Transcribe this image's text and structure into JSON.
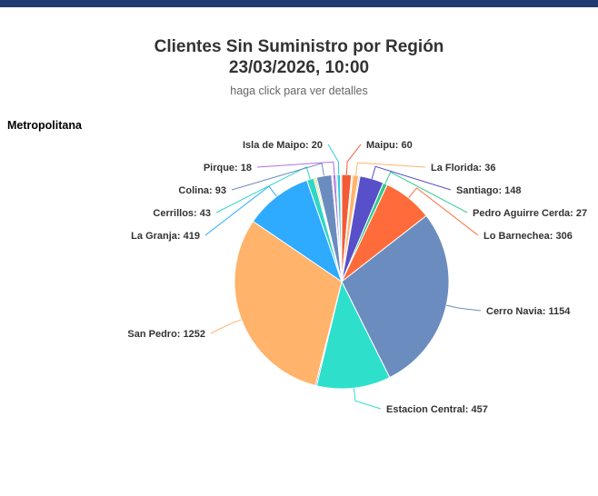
{
  "header": {
    "title_line1": "Clientes Sin Suministro por Región",
    "title_line2": "23/03/2026, 10:00",
    "subtitle": "haga click para ver detalles"
  },
  "region_label": "Metropolitana",
  "chart_data": {
    "type": "pie",
    "title": "Clientes Sin Suministro por Región 23/03/2026, 10:00",
    "subtitle": "haga click para ver detalles",
    "slices": [
      {
        "name": "Maipu",
        "value": 60,
        "color": "#f25b36"
      },
      {
        "name": "",
        "value": 8,
        "color": "#c9c9c9"
      },
      {
        "name": "La Florida",
        "value": 36,
        "color": "#ffb36b"
      },
      {
        "name": "",
        "value": 8,
        "color": "#9aa3d6"
      },
      {
        "name": "Santiago",
        "value": 148,
        "color": "#5750c8"
      },
      {
        "name": "Pedro Aguirre Cerda",
        "value": 27,
        "color": "#2ecc8a"
      },
      {
        "name": "Lo Barnechea",
        "value": 306,
        "color": "#ff6b3a"
      },
      {
        "name": "Cerro Navia",
        "value": 1154,
        "color": "#6b8cbf"
      },
      {
        "name": "Estacion Central",
        "value": 457,
        "color": "#2ee0cc"
      },
      {
        "name": "",
        "value": 8,
        "color": "#555555"
      },
      {
        "name": "San Pedro",
        "value": 1252,
        "color": "#ffb36b"
      },
      {
        "name": "La Granja",
        "value": 419,
        "color": "#2eaaff"
      },
      {
        "name": "Cerrillos",
        "value": 43,
        "color": "#2ed6c8"
      },
      {
        "name": "",
        "value": 10,
        "color": "#f2d21e"
      },
      {
        "name": "",
        "value": 8,
        "color": "#2ecc8a"
      },
      {
        "name": "Colina",
        "value": 93,
        "color": "#6b8cbf"
      },
      {
        "name": "",
        "value": 8,
        "color": "#c8b8e0"
      },
      {
        "name": "Pirque",
        "value": 18,
        "color": "#b070e0"
      },
      {
        "name": "",
        "value": 8,
        "color": "#9aa3d6"
      },
      {
        "name": "Isla de Maipo",
        "value": 20,
        "color": "#2ecce0"
      },
      {
        "name": "",
        "value": 8,
        "color": "#ffd0a0"
      }
    ]
  }
}
